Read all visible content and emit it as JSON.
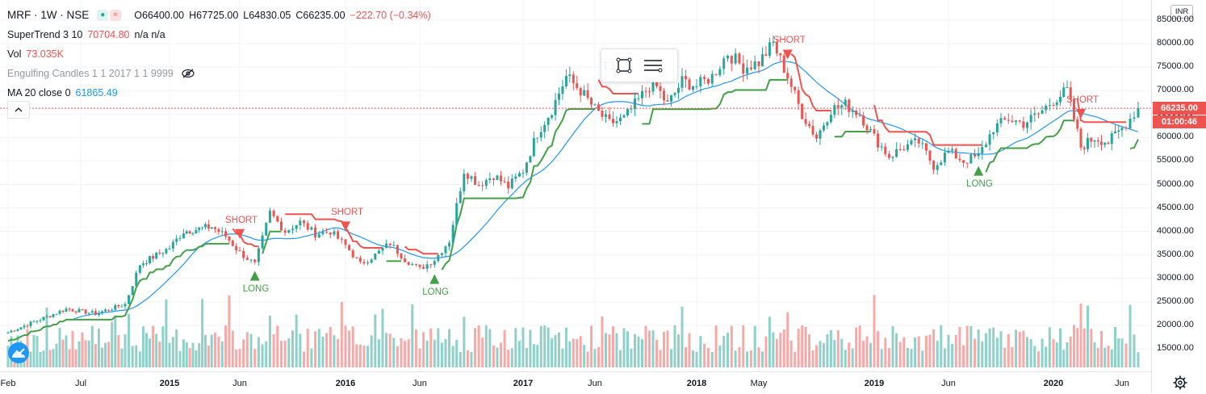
{
  "symbol": {
    "title": "MRF · 1W · NSE"
  },
  "ohlc": {
    "open": "O66400.00",
    "high": "H67725.00",
    "low": "L64830.05",
    "close": "C66235.00",
    "change": "−222.70 (−0.34%)"
  },
  "indicators": {
    "supertrend": {
      "label": "SuperTrend 3 10",
      "value": "70704.80",
      "extra": "n/a  n/a"
    },
    "volume": {
      "label": "Vol",
      "value": "73.035K"
    },
    "engulfing": {
      "label": "Engulfing Candles 1 1 2017 1 1 9999"
    },
    "ma": {
      "label": "MA 20 close 0",
      "value": "61865.49"
    }
  },
  "toolbar": {
    "items": [
      "frame-icon",
      "settings-lines-icon"
    ]
  },
  "price_axis": {
    "currency": "INR",
    "current_price": "66235.00",
    "countdown": "01:00:46",
    "ticks": [
      "85000.00",
      "80000.00",
      "75000.00",
      "70000.00",
      "65000.00",
      "60000.00",
      "55000.00",
      "50000.00",
      "45000.00",
      "40000.00",
      "35000.00",
      "30000.00",
      "25000.00",
      "20000.00",
      "15000.00"
    ]
  },
  "time_axis": {
    "labels": [
      {
        "t": "Feb",
        "bold": false
      },
      {
        "t": "Jul",
        "bold": false
      },
      {
        "t": "2015",
        "bold": true
      },
      {
        "t": "Jun",
        "bold": false
      },
      {
        "t": "2016",
        "bold": true
      },
      {
        "t": "Jun",
        "bold": false
      },
      {
        "t": "2017",
        "bold": true
      },
      {
        "t": "Jun",
        "bold": false
      },
      {
        "t": "2018",
        "bold": true
      },
      {
        "t": "May",
        "bold": false
      },
      {
        "t": "2019",
        "bold": true
      },
      {
        "t": "Jun",
        "bold": false
      },
      {
        "t": "2020",
        "bold": true
      },
      {
        "t": "Jun",
        "bold": false
      }
    ]
  },
  "signals": [
    {
      "type": "SHORT",
      "date": "2015-06"
    },
    {
      "type": "LONG",
      "date": "2015-07"
    },
    {
      "type": "SHORT",
      "date": "2016-01"
    },
    {
      "type": "LONG",
      "date": "2016-07"
    },
    {
      "type": "SHORT",
      "date": "2018-07"
    },
    {
      "type": "LONG",
      "date": "2019-08"
    },
    {
      "type": "SHORT",
      "date": "2020-03"
    }
  ],
  "colors": {
    "up": "#26a69a",
    "down": "#ef5350",
    "supertrend_up": "#43a047",
    "supertrend_down": "#ef5350",
    "ma": "#2196f3",
    "vol_up": "#8fd1c9",
    "vol_down": "#f7a9a7"
  },
  "chart_data": {
    "type": "candlestick",
    "interval": "1W",
    "y_range": [
      15000,
      85000
    ],
    "x_range": [
      "2014-02",
      "2020-07"
    ],
    "close_path": [
      [
        "2014-02",
        18500
      ],
      [
        "2014-04",
        21000
      ],
      [
        "2014-06",
        23500
      ],
      [
        "2014-08",
        22500
      ],
      [
        "2014-10",
        24500
      ],
      [
        "2014-11",
        33000
      ],
      [
        "2015-01",
        36500
      ],
      [
        "2015-02",
        40000
      ],
      [
        "2015-04",
        41000
      ],
      [
        "2015-05",
        39000
      ],
      [
        "2015-06",
        35500
      ],
      [
        "2015-07",
        33000
      ],
      [
        "2015-08",
        44000
      ],
      [
        "2015-09",
        40000
      ],
      [
        "2015-10",
        42000
      ],
      [
        "2015-11",
        39500
      ],
      [
        "2015-12",
        40000
      ],
      [
        "2016-01",
        37000
      ],
      [
        "2016-02",
        33000
      ],
      [
        "2016-03",
        35000
      ],
      [
        "2016-04",
        37500
      ],
      [
        "2016-05",
        34000
      ],
      [
        "2016-06",
        32000
      ],
      [
        "2016-07",
        34000
      ],
      [
        "2016-08",
        38000
      ],
      [
        "2016-09",
        53000
      ],
      [
        "2016-10",
        50000
      ],
      [
        "2016-11",
        52000
      ],
      [
        "2016-12",
        49500
      ],
      [
        "2017-01",
        53000
      ],
      [
        "2017-02",
        61000
      ],
      [
        "2017-03",
        66000
      ],
      [
        "2017-04",
        73000
      ],
      [
        "2017-05",
        70000
      ],
      [
        "2017-06",
        66000
      ],
      [
        "2017-07",
        63000
      ],
      [
        "2017-08",
        64000
      ],
      [
        "2017-09",
        68000
      ],
      [
        "2017-10",
        72000
      ],
      [
        "2017-11",
        67000
      ],
      [
        "2017-12",
        72000
      ],
      [
        "2018-01",
        71000
      ],
      [
        "2018-02",
        73000
      ],
      [
        "2018-03",
        78000
      ],
      [
        "2018-04",
        75000
      ],
      [
        "2018-05",
        76000
      ],
      [
        "2018-06",
        80000
      ],
      [
        "2018-07",
        73000
      ],
      [
        "2018-08",
        65000
      ],
      [
        "2018-09",
        60000
      ],
      [
        "2018-10",
        66000
      ],
      [
        "2018-11",
        67000
      ],
      [
        "2018-12",
        65000
      ],
      [
        "2019-01",
        60000
      ],
      [
        "2019-02",
        56000
      ],
      [
        "2019-03",
        58000
      ],
      [
        "2019-04",
        59000
      ],
      [
        "2019-05",
        54000
      ],
      [
        "2019-06",
        57000
      ],
      [
        "2019-07",
        55000
      ],
      [
        "2019-08",
        56000
      ],
      [
        "2019-09",
        62000
      ],
      [
        "2019-10",
        64000
      ],
      [
        "2019-11",
        63000
      ],
      [
        "2019-12",
        65000
      ],
      [
        "2020-01",
        68000
      ],
      [
        "2020-02",
        70000
      ],
      [
        "2020-03",
        58000
      ],
      [
        "2020-04",
        60000
      ],
      [
        "2020-05",
        59000
      ],
      [
        "2020-06",
        62000
      ],
      [
        "2020-07",
        66235
      ]
    ]
  }
}
